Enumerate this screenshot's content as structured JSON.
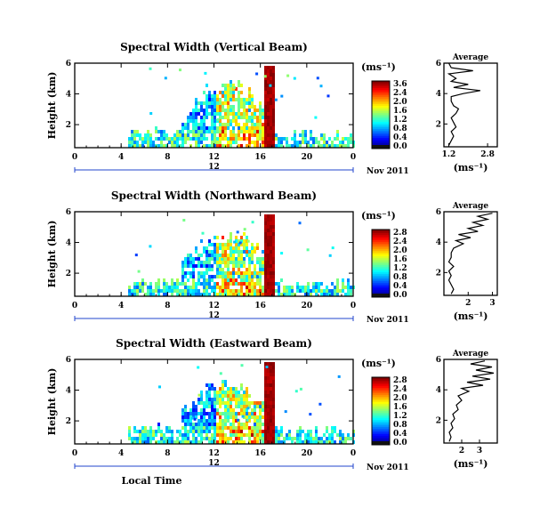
{
  "chart_data": [
    {
      "type": "heatmap",
      "title": "Spectral Width (Vertical Beam)",
      "ylabel": "Height (km)",
      "xlabel": "",
      "x_ticks": [
        "0",
        "4",
        "8",
        "12",
        "16",
        "20",
        "0"
      ],
      "y_ticks": [
        "2",
        "4",
        "6"
      ],
      "xlim": [
        0,
        24
      ],
      "ylim": [
        0.5,
        6
      ],
      "date_label": "12",
      "month_label": "Nov 2011",
      "colorbar": {
        "unit": "(ms⁻¹)",
        "ticks": [
          "3.6",
          "2.4",
          "2.0",
          "1.6",
          "1.2",
          "0.8",
          "0.4",
          "0.0"
        ]
      },
      "average": {
        "title": "Average",
        "xlabel": "(ms⁻¹)",
        "x_ticks": [
          "1.2",
          "2.8"
        ],
        "xlim": [
          1.0,
          3.2
        ],
        "y_ticks": [
          "2",
          "4",
          "6"
        ],
        "profile": [
          [
            1.2,
            0.6
          ],
          [
            1.3,
            0.9
          ],
          [
            1.4,
            1.2
          ],
          [
            1.3,
            1.5
          ],
          [
            1.5,
            1.8
          ],
          [
            1.4,
            2.1
          ],
          [
            1.3,
            2.4
          ],
          [
            1.5,
            2.7
          ],
          [
            1.6,
            3.0
          ],
          [
            1.4,
            3.2
          ],
          [
            1.3,
            3.5
          ],
          [
            1.3,
            3.8
          ],
          [
            1.8,
            4.0
          ],
          [
            2.5,
            4.2
          ],
          [
            1.4,
            4.4
          ],
          [
            2.0,
            4.6
          ],
          [
            1.3,
            4.8
          ],
          [
            1.5,
            5.0
          ],
          [
            1.2,
            5.3
          ],
          [
            2.2,
            5.5
          ],
          [
            1.3,
            5.7
          ],
          [
            1.2,
            6.0
          ]
        ]
      }
    },
    {
      "type": "heatmap",
      "title": "Spectral Width (Northward Beam)",
      "ylabel": "Height (km)",
      "xlabel": "",
      "x_ticks": [
        "0",
        "4",
        "8",
        "12",
        "16",
        "20",
        "0"
      ],
      "y_ticks": [
        "2",
        "4",
        "6"
      ],
      "xlim": [
        0,
        24
      ],
      "ylim": [
        0.5,
        6
      ],
      "date_label": "12",
      "month_label": "Nov 2011",
      "colorbar": {
        "unit": "(ms⁻¹)",
        "ticks": [
          "2.8",
          "2.4",
          "2.0",
          "1.6",
          "1.2",
          "0.8",
          "0.4",
          "0.0"
        ]
      },
      "average": {
        "title": "Average",
        "xlabel": "(ms⁻¹)",
        "x_ticks": [
          "2",
          "3"
        ],
        "xlim": [
          1.0,
          3.2
        ],
        "y_ticks": [
          "2",
          "4",
          "6"
        ],
        "profile": [
          [
            1.3,
            0.6
          ],
          [
            1.4,
            0.9
          ],
          [
            1.3,
            1.2
          ],
          [
            1.2,
            1.5
          ],
          [
            1.3,
            1.8
          ],
          [
            1.2,
            2.1
          ],
          [
            1.4,
            2.4
          ],
          [
            1.2,
            2.7
          ],
          [
            1.3,
            3.0
          ],
          [
            1.3,
            3.3
          ],
          [
            1.4,
            3.6
          ],
          [
            1.8,
            3.9
          ],
          [
            1.5,
            4.1
          ],
          [
            2.1,
            4.3
          ],
          [
            1.6,
            4.5
          ],
          [
            2.4,
            4.7
          ],
          [
            2.0,
            4.9
          ],
          [
            2.6,
            5.1
          ],
          [
            2.2,
            5.3
          ],
          [
            2.8,
            5.5
          ],
          [
            2.4,
            5.7
          ],
          [
            3.0,
            5.9
          ]
        ]
      }
    },
    {
      "type": "heatmap",
      "title": "Spectral Width (Eastward Beam)",
      "ylabel": "Height (km)",
      "xlabel": "Local Time",
      "x_ticks": [
        "0",
        "4",
        "8",
        "12",
        "16",
        "20",
        "0"
      ],
      "y_ticks": [
        "2",
        "4",
        "6"
      ],
      "xlim": [
        0,
        24
      ],
      "ylim": [
        0.5,
        6
      ],
      "date_label": "12",
      "month_label": "Nov 2011",
      "colorbar": {
        "unit": "(ms⁻¹)",
        "ticks": [
          "2.8",
          "2.4",
          "2.0",
          "1.6",
          "1.2",
          "0.8",
          "0.4",
          "0.0"
        ]
      },
      "average": {
        "title": "Average",
        "xlabel": "(ms⁻¹)",
        "x_ticks": [
          "2",
          "3"
        ],
        "xlim": [
          1.0,
          4.0
        ],
        "y_ticks": [
          "2",
          "4",
          "6"
        ],
        "profile": [
          [
            1.3,
            0.6
          ],
          [
            1.4,
            0.9
          ],
          [
            1.3,
            1.2
          ],
          [
            1.5,
            1.5
          ],
          [
            1.4,
            1.8
          ],
          [
            1.6,
            2.1
          ],
          [
            1.5,
            2.4
          ],
          [
            1.8,
            2.7
          ],
          [
            1.7,
            3.0
          ],
          [
            2.0,
            3.3
          ],
          [
            1.8,
            3.6
          ],
          [
            2.4,
            3.9
          ],
          [
            2.0,
            4.1
          ],
          [
            3.2,
            4.3
          ],
          [
            2.3,
            4.5
          ],
          [
            3.6,
            4.7
          ],
          [
            2.6,
            4.9
          ],
          [
            3.8,
            5.1
          ],
          [
            2.8,
            5.3
          ],
          [
            3.7,
            5.5
          ],
          [
            2.5,
            5.7
          ],
          [
            3.3,
            5.9
          ]
        ]
      }
    }
  ]
}
